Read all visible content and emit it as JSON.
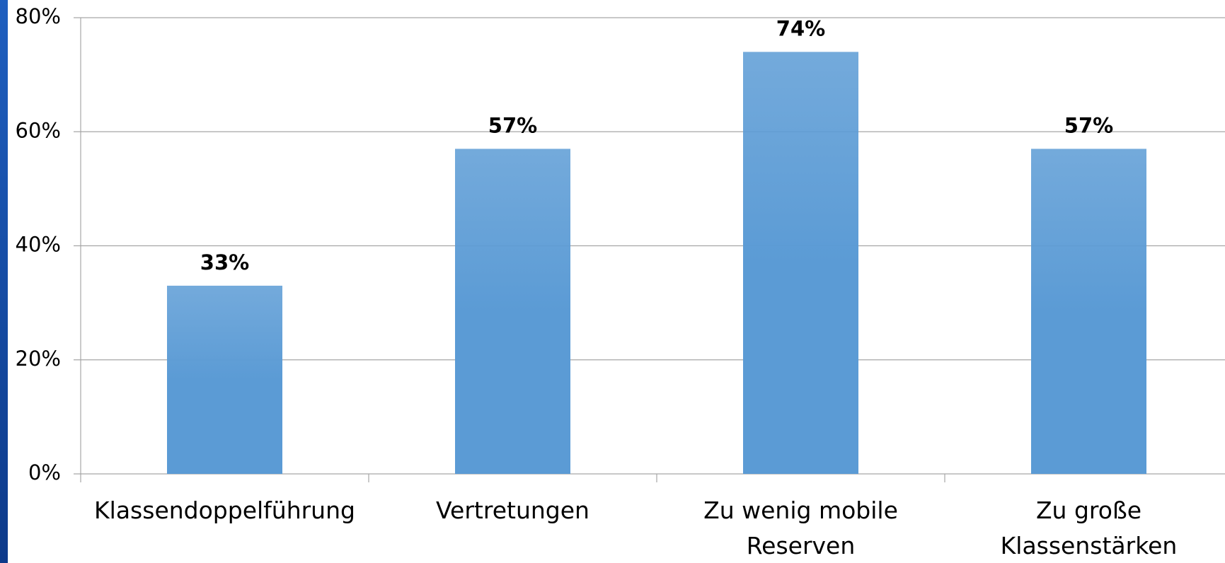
{
  "chart_data": {
    "type": "bar",
    "categories": [
      "Klassendoppelführung",
      "Vertretungen",
      "Zu wenig mobile Reserven",
      "Zu große Klassenstärken"
    ],
    "values": [
      33,
      57,
      74,
      57
    ],
    "value_labels": [
      "33%",
      "57%",
      "74%",
      "57%"
    ],
    "color": "#5b9bd5",
    "ylim": [
      0,
      80
    ],
    "yticks": [
      {
        "value": 0,
        "label": "0%"
      },
      {
        "value": 20,
        "label": "20%"
      },
      {
        "value": 40,
        "label": "40%"
      },
      {
        "value": 60,
        "label": "60%"
      },
      {
        "value": 80,
        "label": "80%"
      }
    ],
    "grid": true
  }
}
